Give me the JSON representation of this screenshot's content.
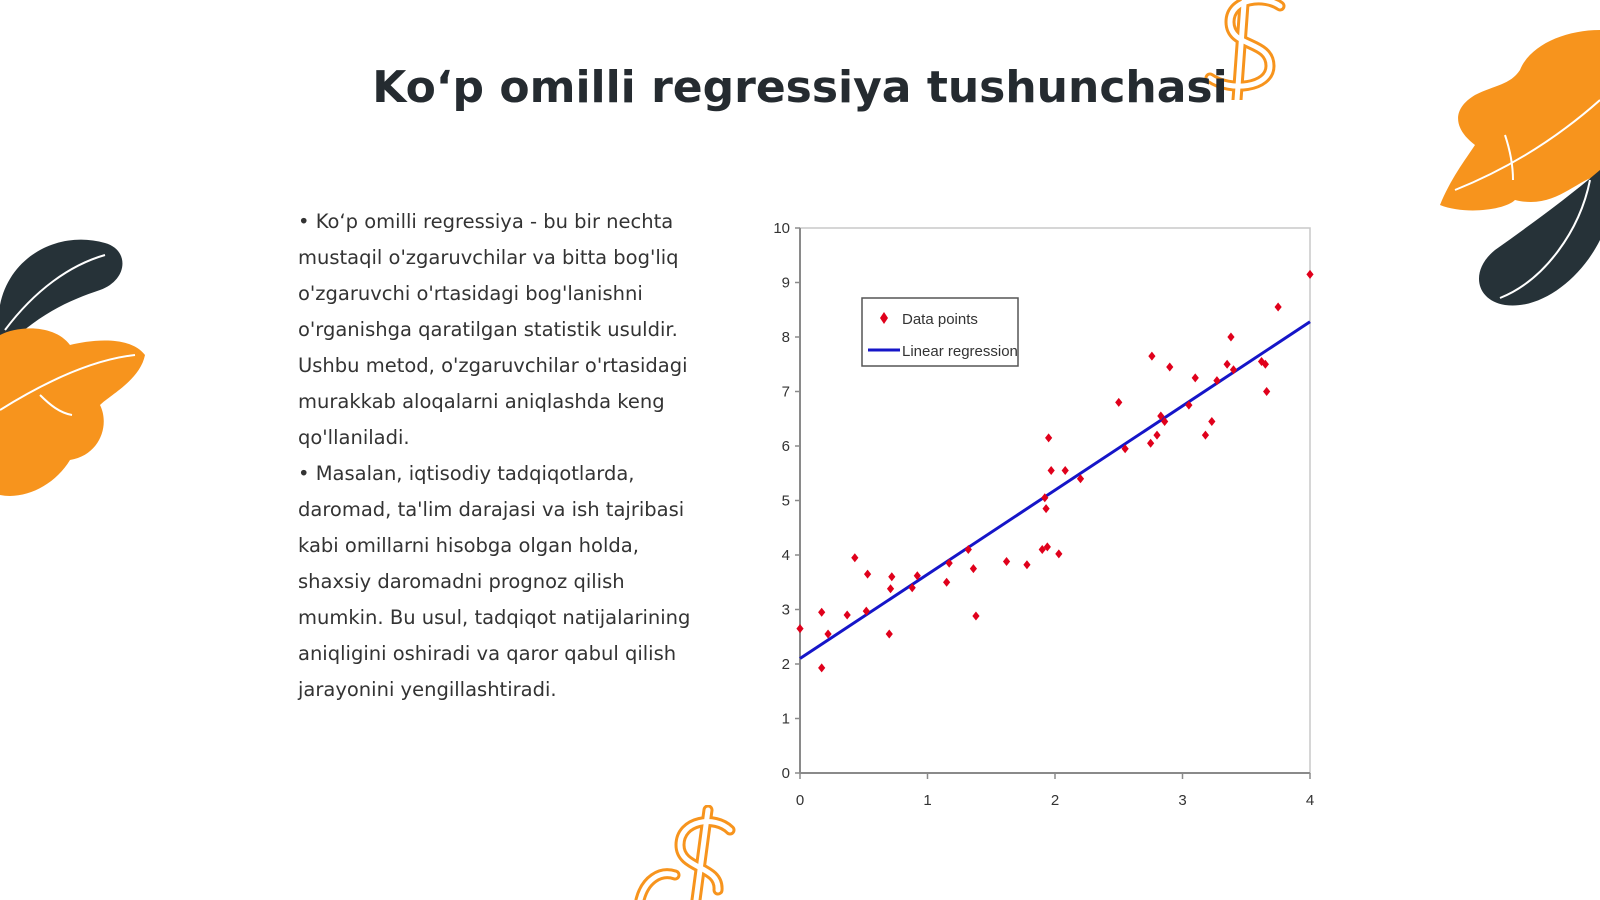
{
  "slide": {
    "title": "Ko‘p omilli regressiya tushunchasi",
    "bullets": [
      "• Ko‘p omilli regressiya - bu bir nechta mustaqil o'zgaruvchilar va bitta bog'liq o'zgaruvchi o'rtasidagi bog'lanishni o'rganishga qaratilgan statistik usuldir. Ushbu metod, o'zgaruvchilar o'rtasidagi murakkab aloqalarni aniqlashda keng qo'llaniladi.",
      "• Masalan, iqtisodiy tadqiqotlarda, daromad, ta'lim darajasi va ish tajribasi kabi omillarni hisobga olgan holda, shaxsiy daromadni prognoz qilish mumkin. Bu usul, tadqiqot natijalarining aniqligini oshiradi va qaror qabul qilish jarayonini yengillashtiradi."
    ]
  },
  "colors": {
    "accent_orange": "#f7941d",
    "dark_leaf": "#263238",
    "points": "#e0001b",
    "line": "#1515c8",
    "axis": "#8a8a8a"
  },
  "icons": [
    "dollar-sign-icon",
    "leaf-icon"
  ],
  "chart_data": {
    "type": "scatter",
    "title": "",
    "xlabel": "",
    "ylabel": "",
    "xlim": [
      0,
      4
    ],
    "ylim": [
      0,
      10
    ],
    "x_ticks": [
      "0",
      "1",
      "2",
      "3",
      "4"
    ],
    "y_ticks": [
      "0",
      "1",
      "2",
      "3",
      "4",
      "5",
      "6",
      "7",
      "8",
      "9",
      "10"
    ],
    "grid": false,
    "legend_position": "top-left",
    "legend": [
      "Data points",
      "Linear regression"
    ],
    "series": [
      {
        "name": "Data points",
        "kind": "scatter",
        "points": [
          [
            0.0,
            2.65
          ],
          [
            0.17,
            2.95
          ],
          [
            0.17,
            1.93
          ],
          [
            0.22,
            2.55
          ],
          [
            0.37,
            2.9
          ],
          [
            0.43,
            3.95
          ],
          [
            0.52,
            2.97
          ],
          [
            0.53,
            3.65
          ],
          [
            0.7,
            2.55
          ],
          [
            0.71,
            3.38
          ],
          [
            0.72,
            3.6
          ],
          [
            0.88,
            3.4
          ],
          [
            0.92,
            3.62
          ],
          [
            1.15,
            3.5
          ],
          [
            1.17,
            3.85
          ],
          [
            1.32,
            4.1
          ],
          [
            1.36,
            3.75
          ],
          [
            1.38,
            2.88
          ],
          [
            1.62,
            3.88
          ],
          [
            1.78,
            3.82
          ],
          [
            1.9,
            4.1
          ],
          [
            1.92,
            5.05
          ],
          [
            1.93,
            4.85
          ],
          [
            1.94,
            4.15
          ],
          [
            1.95,
            6.15
          ],
          [
            1.97,
            5.55
          ],
          [
            2.03,
            4.02
          ],
          [
            2.08,
            5.55
          ],
          [
            2.2,
            5.4
          ],
          [
            2.5,
            6.8
          ],
          [
            2.55,
            5.95
          ],
          [
            2.75,
            6.05
          ],
          [
            2.76,
            7.65
          ],
          [
            2.8,
            6.2
          ],
          [
            2.83,
            6.55
          ],
          [
            2.86,
            6.45
          ],
          [
            2.9,
            7.45
          ],
          [
            3.05,
            6.75
          ],
          [
            3.1,
            7.25
          ],
          [
            3.18,
            6.2
          ],
          [
            3.23,
            6.45
          ],
          [
            3.27,
            7.2
          ],
          [
            3.35,
            7.5
          ],
          [
            3.38,
            8.0
          ],
          [
            3.4,
            7.4
          ],
          [
            3.62,
            7.55
          ],
          [
            3.65,
            7.5
          ],
          [
            3.66,
            7.0
          ],
          [
            3.75,
            8.55
          ],
          [
            4.0,
            9.15
          ]
        ]
      },
      {
        "name": "Linear regression",
        "kind": "line",
        "points": [
          [
            0,
            2.1
          ],
          [
            4,
            8.28
          ]
        ]
      }
    ]
  }
}
